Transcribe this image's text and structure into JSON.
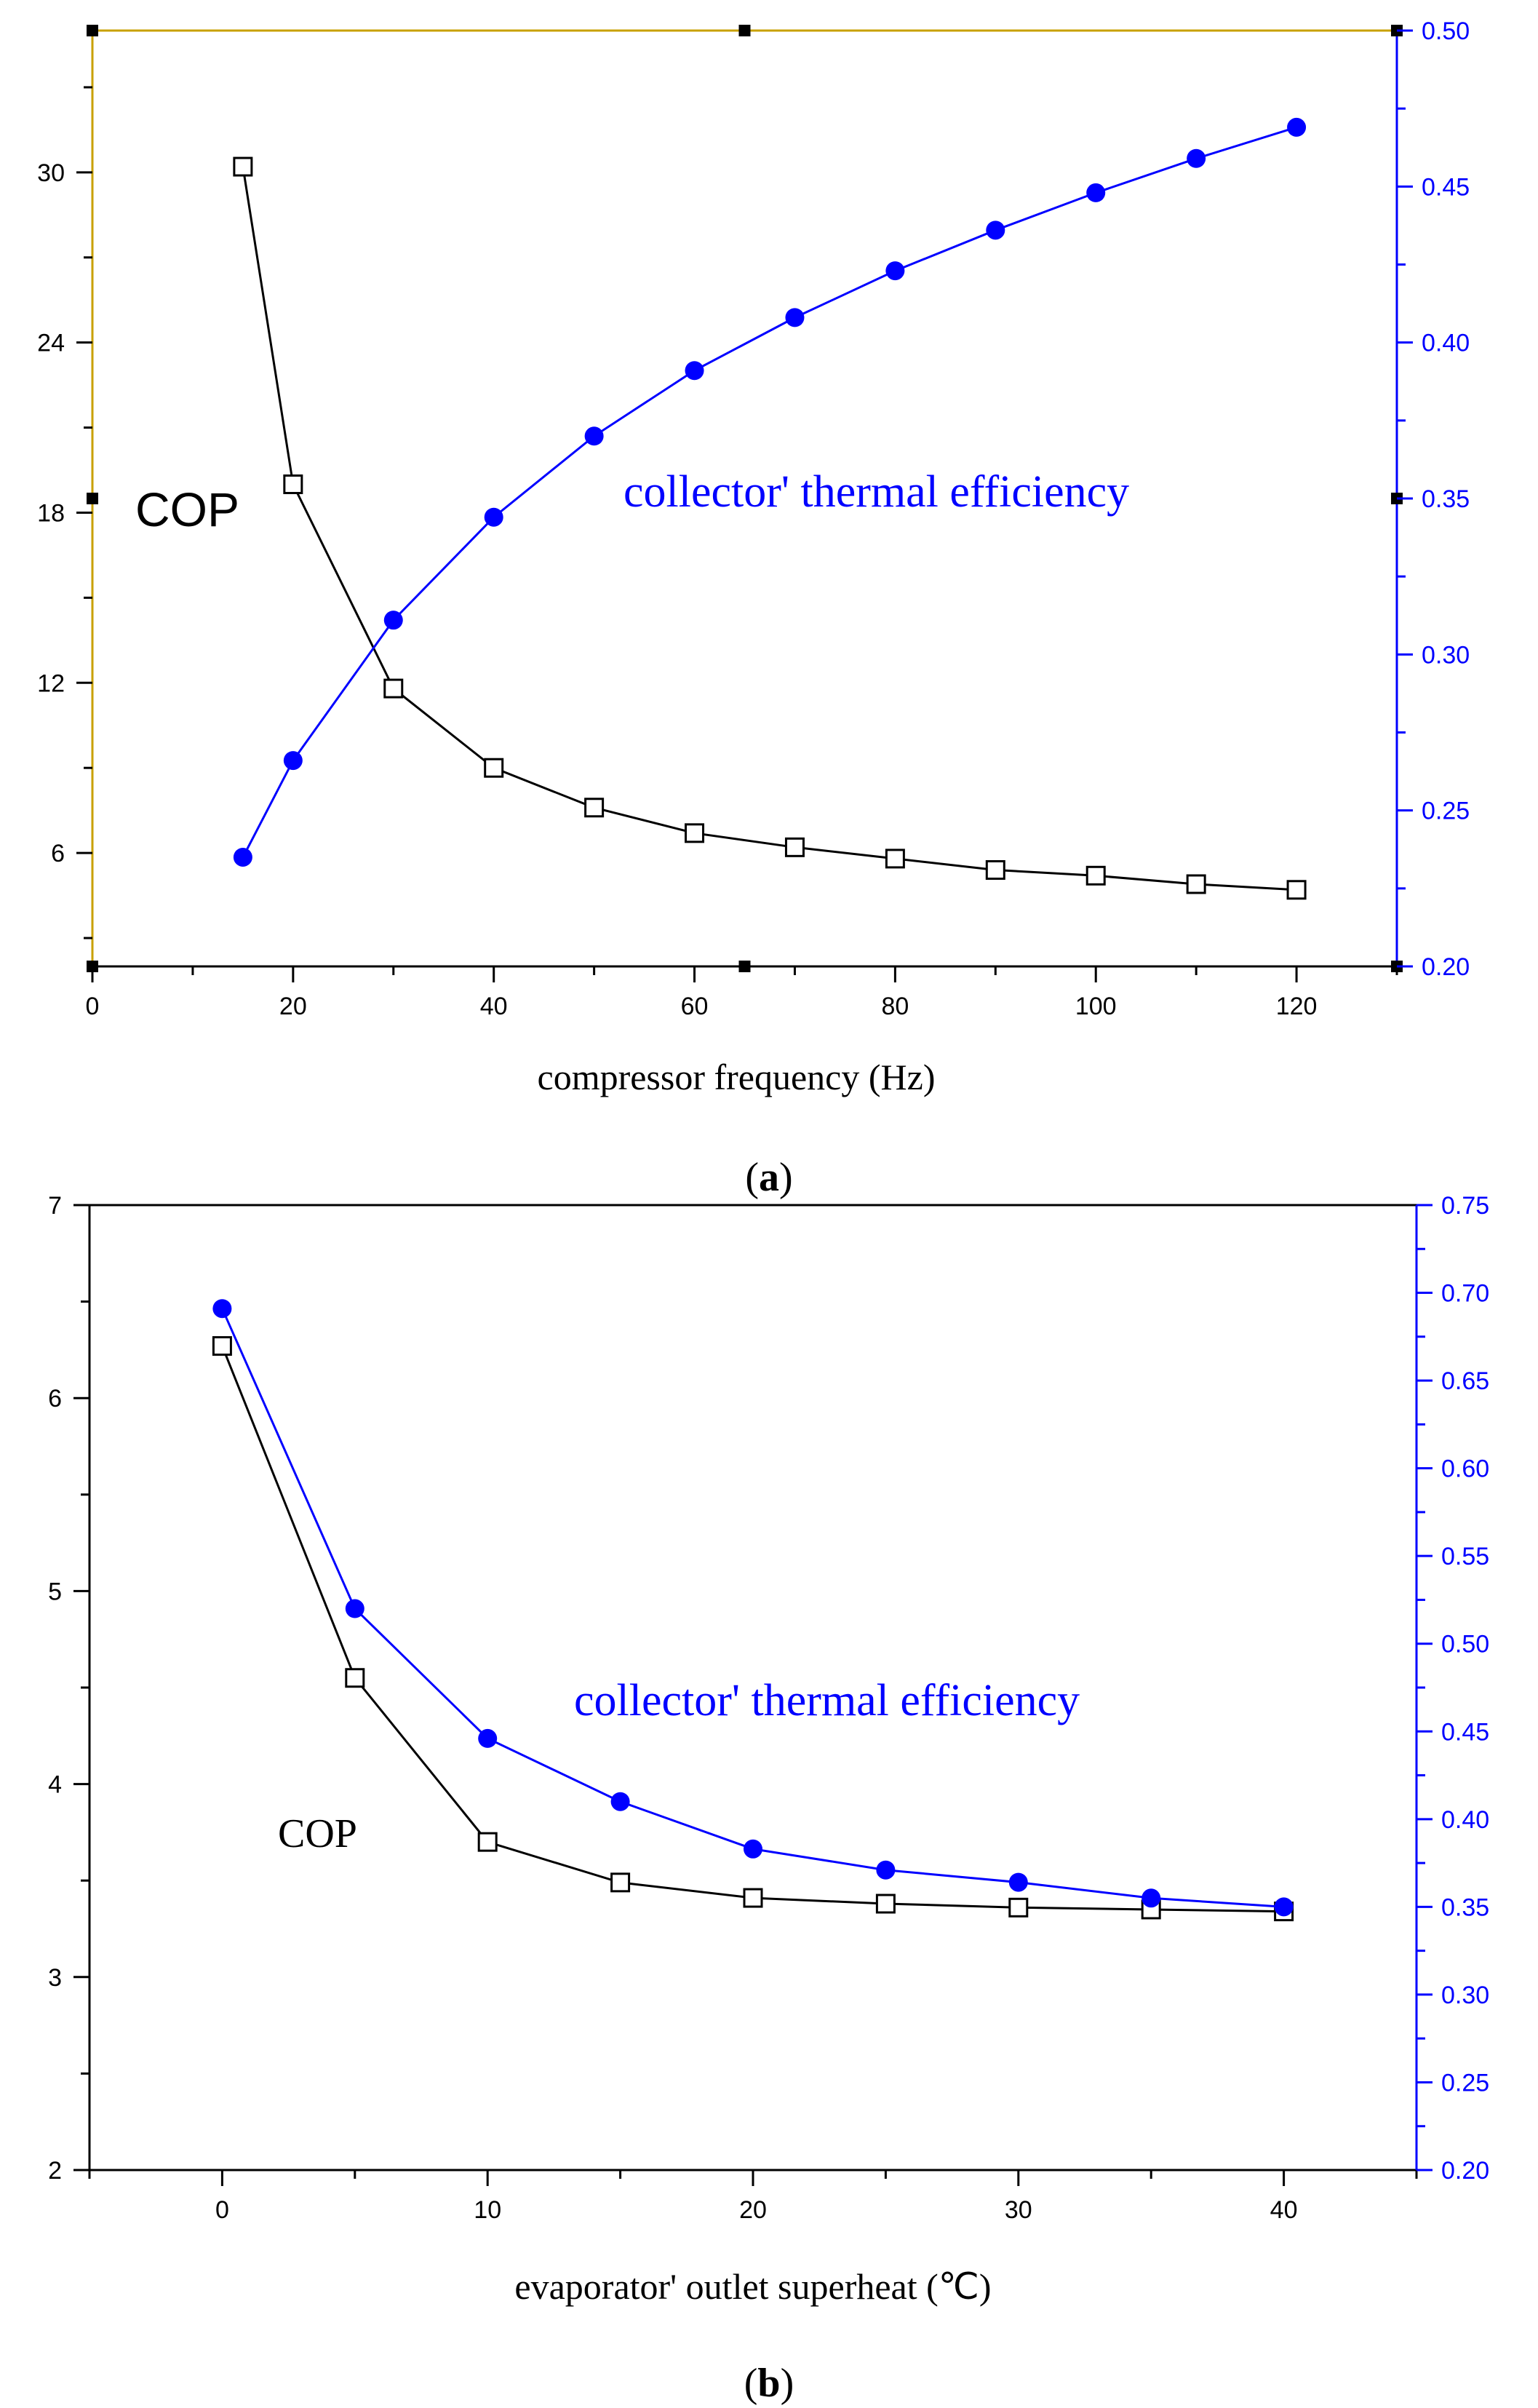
{
  "chart_data": [
    {
      "type": "line",
      "panel_label": "a",
      "xlabel": "compressor frequency (Hz)",
      "x_ticks": [
        "0",
        "20",
        "40",
        "60",
        "80",
        "100",
        "120"
      ],
      "xlim": [
        0,
        130
      ],
      "y_left_ticks": [
        "6",
        "12",
        "18",
        "24",
        "30"
      ],
      "y_left_lim": [
        2,
        35
      ],
      "y_right_ticks": [
        "0.20",
        "0.25",
        "0.30",
        "0.35",
        "0.40",
        "0.45",
        "0.50"
      ],
      "y_right_lim": [
        0.2,
        0.5
      ],
      "series": [
        {
          "name": "COP",
          "axis": "left",
          "color": "#000000",
          "marker": "open-square",
          "x": [
            15,
            20,
            30,
            40,
            50,
            60,
            70,
            80,
            90,
            100,
            110,
            120
          ],
          "y": [
            30.2,
            19.0,
            11.8,
            9.0,
            7.6,
            6.7,
            6.2,
            5.8,
            5.4,
            5.2,
            4.9,
            4.7
          ]
        },
        {
          "name": "collector' thermal efficiency",
          "axis": "right",
          "color": "#0000ff",
          "marker": "filled-circle",
          "x": [
            15,
            20,
            30,
            40,
            50,
            60,
            70,
            80,
            90,
            100,
            110,
            120
          ],
          "y": [
            0.235,
            0.266,
            0.311,
            0.344,
            0.37,
            0.391,
            0.408,
            0.423,
            0.436,
            0.448,
            0.459,
            0.469
          ]
        }
      ],
      "annotations": [
        "COP",
        "collector' thermal efficiency"
      ]
    },
    {
      "type": "line",
      "panel_label": "b",
      "xlabel": "evaporator' outlet superheat (℃)",
      "x_ticks": [
        "0",
        "10",
        "20",
        "30",
        "40"
      ],
      "xlim": [
        -5,
        45
      ],
      "y_left_ticks": [
        "2",
        "3",
        "4",
        "5",
        "6",
        "7"
      ],
      "y_left_lim": [
        2,
        7
      ],
      "y_right_ticks": [
        "0.20",
        "0.25",
        "0.30",
        "0.35",
        "0.40",
        "0.45",
        "0.50",
        "0.55",
        "0.60",
        "0.65",
        "0.70",
        "0.75"
      ],
      "y_right_lim": [
        0.2,
        0.75
      ],
      "series": [
        {
          "name": "COP",
          "axis": "left",
          "color": "#000000",
          "marker": "open-square",
          "x": [
            0,
            5,
            10,
            15,
            20,
            25,
            30,
            35,
            40
          ],
          "y": [
            6.27,
            4.55,
            3.7,
            3.49,
            3.41,
            3.38,
            3.36,
            3.35,
            3.34
          ]
        },
        {
          "name": "collector' thermal efficiency",
          "axis": "right",
          "color": "#0000ff",
          "marker": "filled-circle",
          "x": [
            0,
            5,
            10,
            15,
            20,
            25,
            30,
            35,
            40
          ],
          "y": [
            0.691,
            0.52,
            0.446,
            0.41,
            0.383,
            0.371,
            0.364,
            0.355,
            0.35
          ]
        }
      ],
      "annotations": [
        "COP",
        "collector' thermal efficiency"
      ]
    }
  ]
}
